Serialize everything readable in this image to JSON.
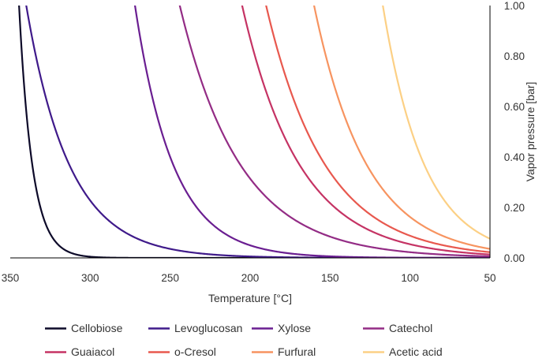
{
  "chart_data": {
    "type": "line",
    "title": "",
    "xlabel": "Temperature [°C]",
    "ylabel": "Vapor pressure [bar]",
    "xlim": [
      350,
      50
    ],
    "ylim": [
      0,
      1
    ],
    "x_reversed": true,
    "y_axis_side": "right",
    "grid": false,
    "legend_position": "bottom",
    "x_ticks": [
      "350",
      "300",
      "250",
      "200",
      "150",
      "100",
      "50"
    ],
    "y_ticks": [
      "0.00",
      "0.20",
      "0.40",
      "0.60",
      "0.80",
      "1.00"
    ],
    "series": [
      {
        "name": "Cellobiose",
        "color": "#0d0a29",
        "T_at_1bar": 344.5,
        "decay_C": 8.3,
        "x": [
          344.5,
          335,
          325,
          315,
          305,
          295,
          285,
          280
        ],
        "y": [
          1.0,
          0.32,
          0.096,
          0.029,
          0.0087,
          0.0026,
          0.0008,
          0.0004
        ]
      },
      {
        "name": "Levoglucosan",
        "color": "#3f1a8a",
        "T_at_1bar": 340.0,
        "decay_C": 27.0,
        "x": [
          340,
          320,
          300,
          280,
          260,
          240,
          220,
          200,
          180,
          150
        ],
        "y": [
          1.0,
          0.48,
          0.23,
          0.108,
          0.052,
          0.025,
          0.012,
          0.0052,
          0.0025,
          0.0008
        ]
      },
      {
        "name": "Xylose",
        "color": "#6a1e91",
        "T_at_1bar": 272.0,
        "decay_C": 24.0,
        "x": [
          272,
          250,
          230,
          210,
          190,
          170,
          150,
          130,
          110,
          100
        ],
        "y": [
          1.0,
          0.4,
          0.17,
          0.075,
          0.033,
          0.014,
          0.0062,
          0.0027,
          0.0012,
          0.0008
        ]
      },
      {
        "name": "Catechol",
        "color": "#932c85",
        "T_at_1bar": 244.0,
        "decay_C": 38.0,
        "x": [
          244,
          220,
          200,
          180,
          160,
          140,
          120,
          100,
          80,
          60,
          50
        ],
        "y": [
          1.0,
          0.53,
          0.31,
          0.186,
          0.11,
          0.065,
          0.039,
          0.023,
          0.013,
          0.008,
          0.006
        ]
      },
      {
        "name": "Guaiacol",
        "color": "#c53364",
        "T_at_1bar": 205.0,
        "decay_C": 36.0,
        "x": [
          205,
          190,
          170,
          150,
          130,
          110,
          90,
          70,
          50
        ],
        "y": [
          1.0,
          0.66,
          0.38,
          0.22,
          0.126,
          0.071,
          0.041,
          0.023,
          0.013
        ]
      },
      {
        "name": "o-Cresol",
        "color": "#e8584e",
        "T_at_1bar": 190.0,
        "decay_C": 37.0,
        "x": [
          190,
          170,
          150,
          130,
          110,
          90,
          70,
          50
        ],
        "y": [
          1.0,
          0.58,
          0.34,
          0.198,
          0.115,
          0.067,
          0.039,
          0.023
        ]
      },
      {
        "name": "Furfural",
        "color": "#f79460",
        "T_at_1bar": 160.0,
        "decay_C": 33.0,
        "x": [
          160,
          145,
          130,
          115,
          100,
          85,
          70,
          60,
          50
        ],
        "y": [
          1.0,
          0.63,
          0.4,
          0.256,
          0.162,
          0.103,
          0.065,
          0.048,
          0.036
        ]
      },
      {
        "name": "Acetic acid",
        "color": "#fcd085",
        "T_at_1bar": 117.0,
        "decay_C": 26.0,
        "x": [
          117,
          105,
          95,
          85,
          75,
          65,
          55,
          50
        ],
        "y": [
          1.0,
          0.63,
          0.46,
          0.29,
          0.21,
          0.15,
          0.1,
          0.08
        ]
      }
    ]
  }
}
